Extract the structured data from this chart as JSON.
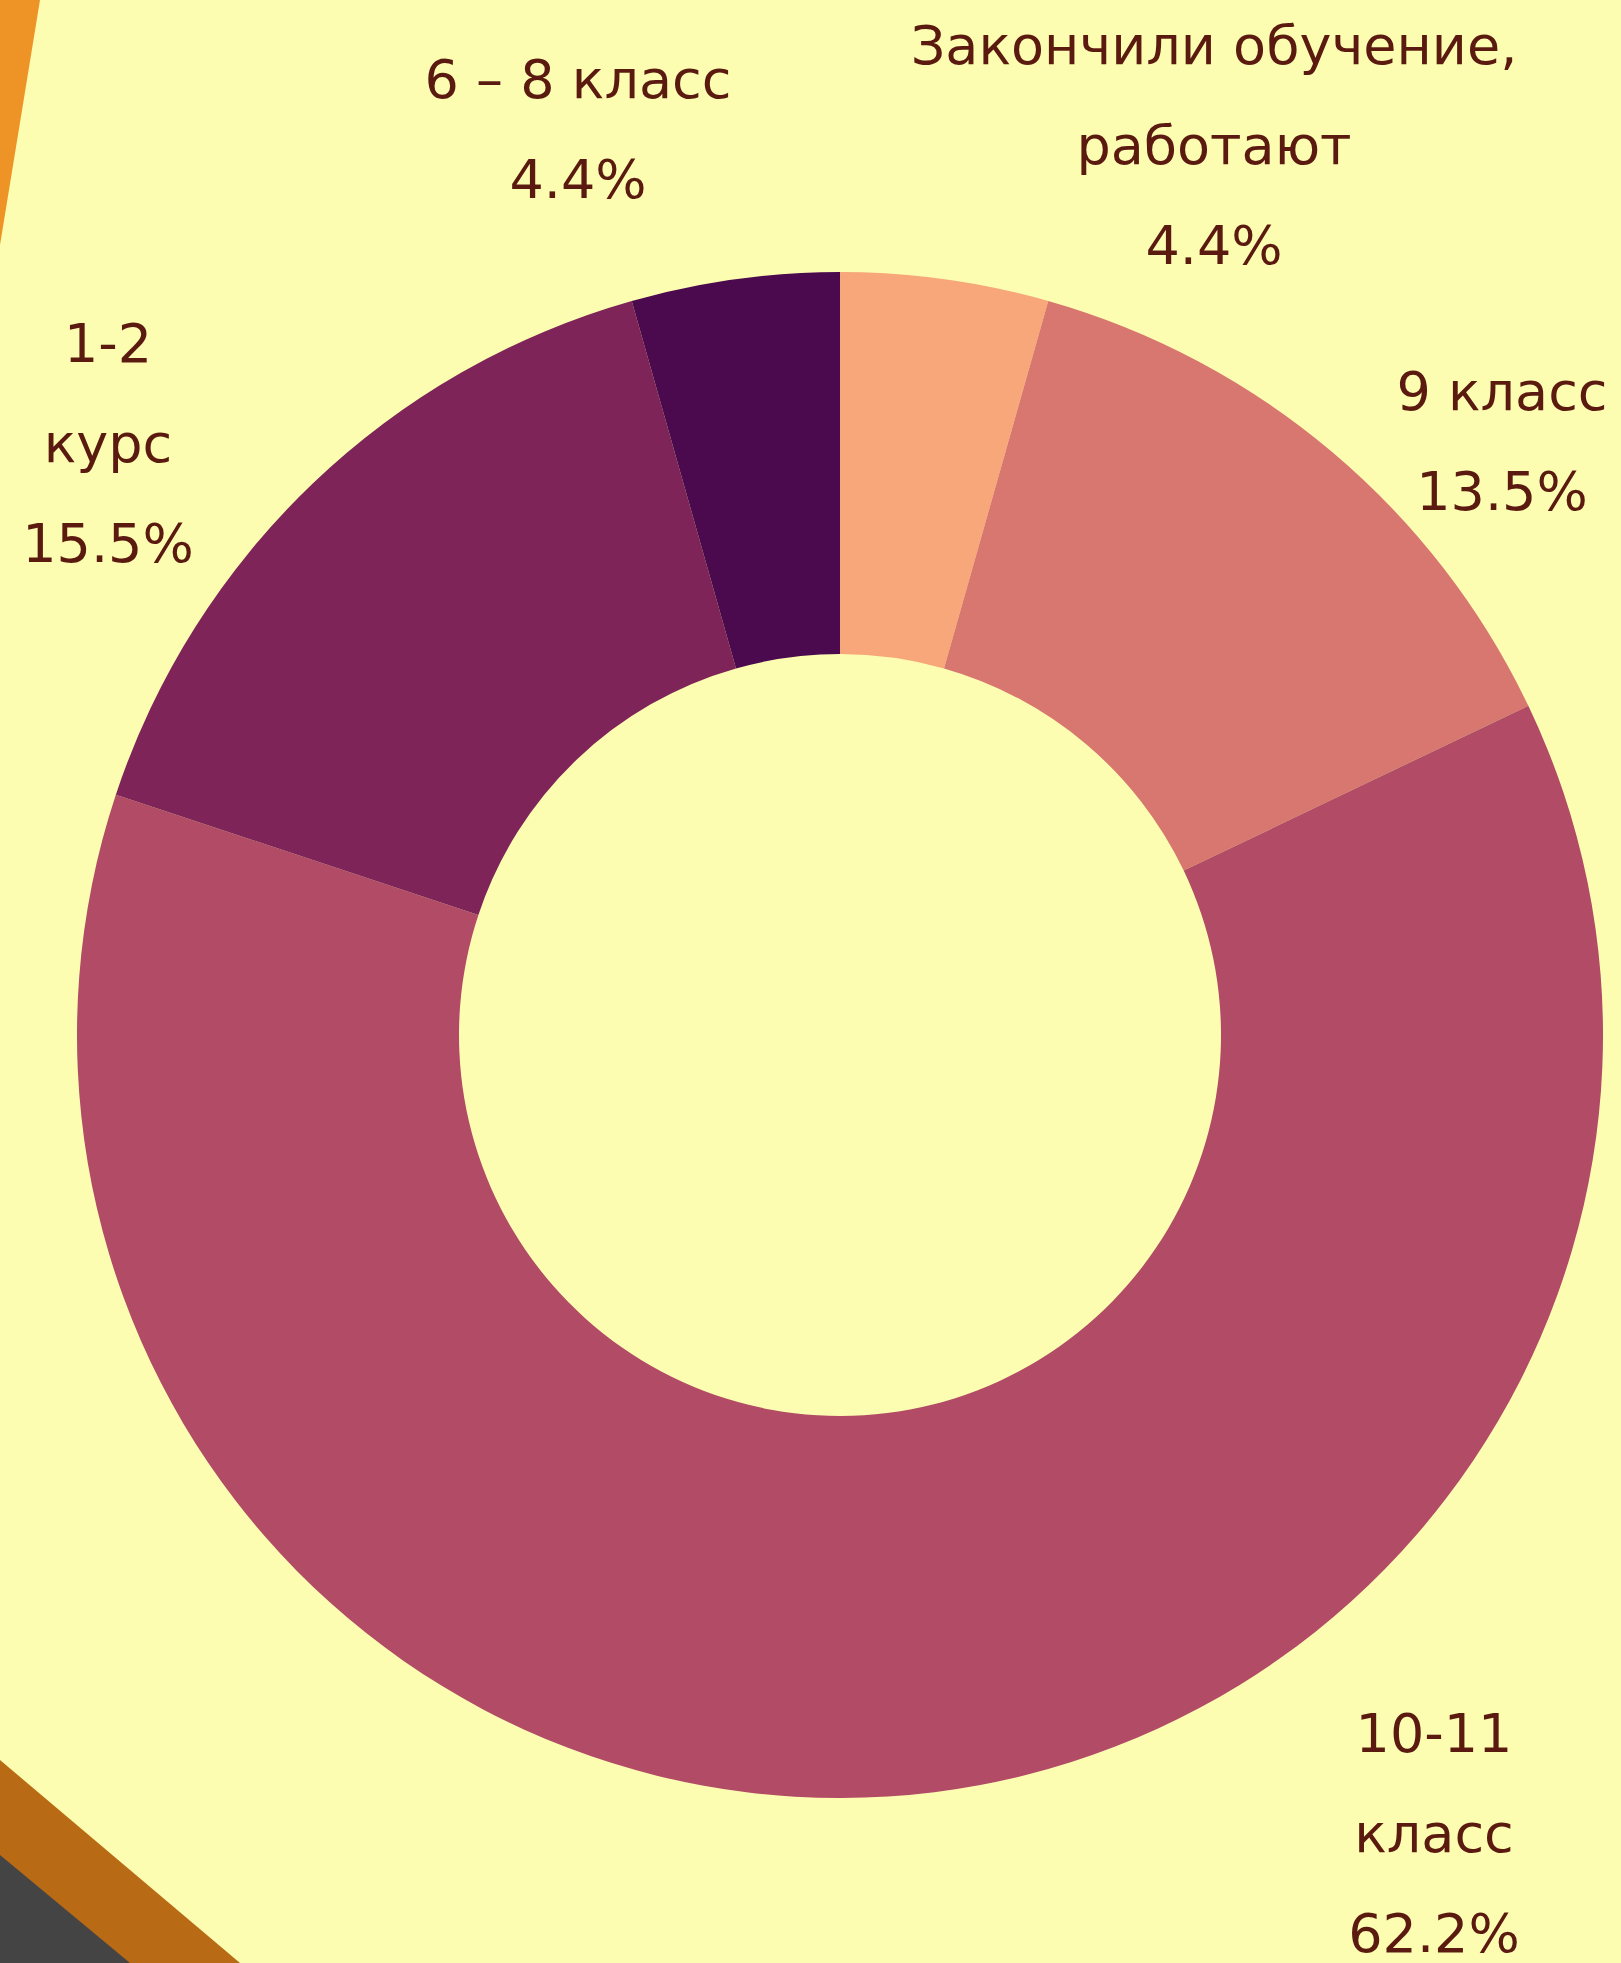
{
  "chart_data": {
    "type": "donut",
    "categories": [
      "Закончили обучение, работают",
      "9 класс",
      "10-11 класс",
      "1-2 курс",
      "6 – 8 класс"
    ],
    "values": [
      4.4,
      13.5,
      62.2,
      15.5,
      4.4
    ],
    "value_labels": [
      "4.4%",
      "13.5%",
      "62.2%",
      "15.5%",
      "4.4%"
    ],
    "colors": [
      "#f7a77a",
      "#d87770",
      "#b14b66",
      "#7e2459",
      "#4b0a4d"
    ],
    "legend": false
  }
}
